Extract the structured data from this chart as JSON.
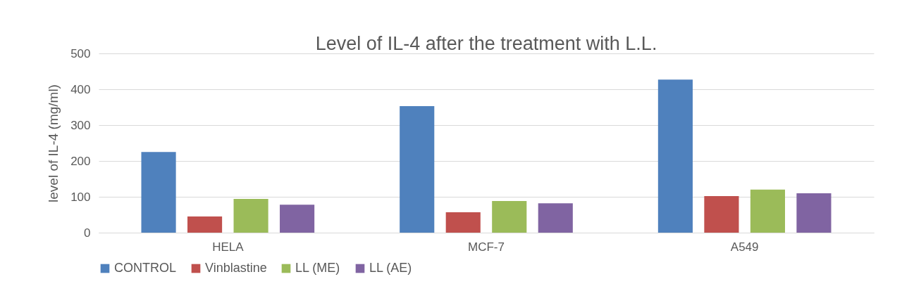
{
  "chart_data": {
    "type": "bar",
    "title": "Level of IL-4 after the treatment with L.L.",
    "ylabel": "level of IL-4 (mg/ml)",
    "categories": [
      "HELA",
      "MCF-7",
      "A549"
    ],
    "series": [
      {
        "name": "CONTROL",
        "color": "#4f81bd",
        "values": [
          225,
          353,
          427
        ]
      },
      {
        "name": "Vinblastine",
        "color": "#c0504d",
        "values": [
          45,
          57,
          102
        ]
      },
      {
        "name": "LL (ME)",
        "color": "#9bbb59",
        "values": [
          94,
          88,
          120
        ]
      },
      {
        "name": "LL (AE)",
        "color": "#8064a2",
        "values": [
          78,
          82,
          110
        ]
      }
    ],
    "ylim": [
      0,
      500
    ],
    "yticks": [
      0,
      100,
      200,
      300,
      400,
      500
    ],
    "grid": "y",
    "legend": "bottom"
  }
}
